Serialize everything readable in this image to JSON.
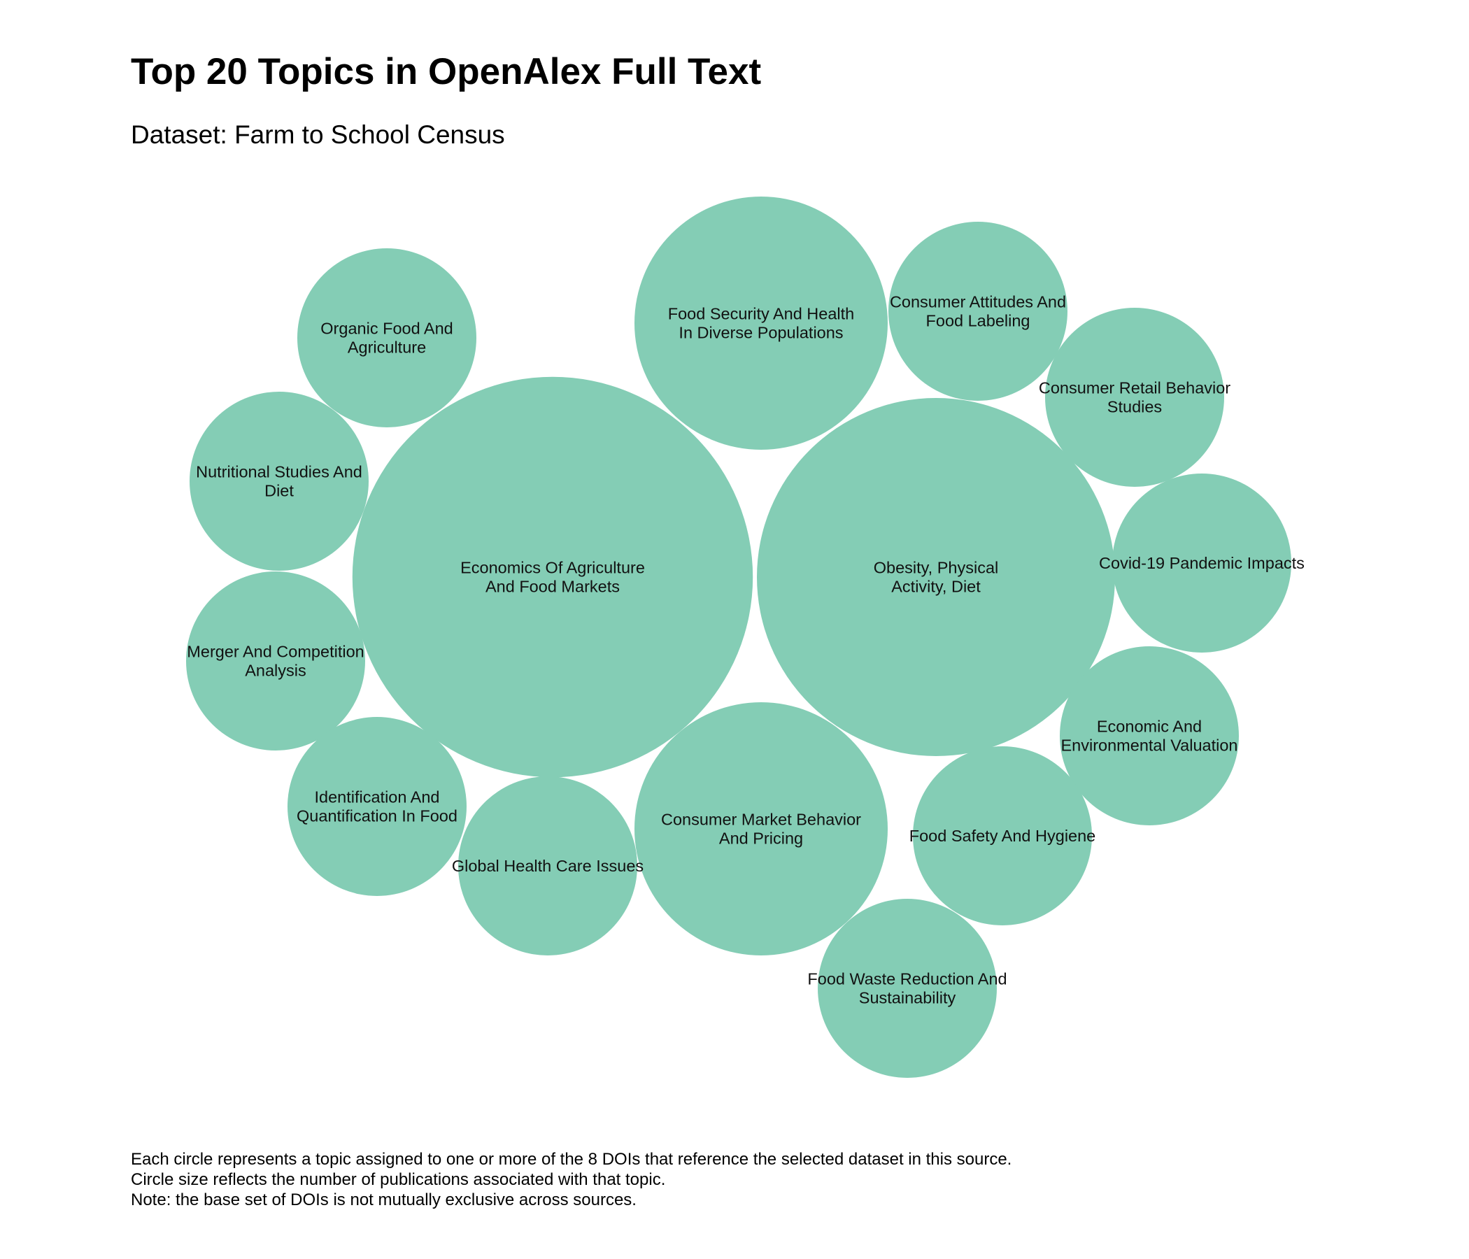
{
  "chart_data": {
    "type": "bubble",
    "title": "Top 20 Topics in OpenAlex Full Text",
    "subtitle": "Dataset: Farm to School Census",
    "color": "#84cdb5",
    "topics": [
      {
        "label": [
          "Economics Of Agriculture",
          "And Food Markets"
        ],
        "value": 5
      },
      {
        "label": [
          "Obesity, Physical",
          "Activity, Diet"
        ],
        "value": 4
      },
      {
        "label": [
          "Food Security And Health",
          "In Diverse Populations"
        ],
        "value": 2
      },
      {
        "label": [
          "Consumer Market Behavior",
          "And Pricing"
        ],
        "value": 2
      },
      {
        "label": [
          "Consumer Attitudes And",
          "Food Labeling"
        ],
        "value": 1
      },
      {
        "label": [
          "Consumer Retail Behavior",
          "Studies"
        ],
        "value": 1
      },
      {
        "label": [
          "Organic Food And",
          "Agriculture"
        ],
        "value": 1
      },
      {
        "label": [
          "Nutritional Studies And",
          "Diet"
        ],
        "value": 1
      },
      {
        "label": [
          "Covid-19 Pandemic Impacts"
        ],
        "value": 1
      },
      {
        "label": [
          "Merger And Competition",
          "Analysis"
        ],
        "value": 1
      },
      {
        "label": [
          "Economic And",
          "Environmental Valuation"
        ],
        "value": 1
      },
      {
        "label": [
          "Identification And",
          "Quantification In Food"
        ],
        "value": 1
      },
      {
        "label": [
          "Global Health Care Issues"
        ],
        "value": 1
      },
      {
        "label": [
          "Food Safety And Hygiene"
        ],
        "value": 1
      },
      {
        "label": [
          "Food Waste Reduction And",
          "Sustainability"
        ],
        "value": 1
      }
    ]
  },
  "caption": [
    "Each circle represents a topic assigned to one or more of the 8 DOIs that reference the selected dataset in this source.",
    "Circle size reflects the number of publications associated with that topic.",
    "Note: the base set of DOIs is not mutually exclusive across sources."
  ]
}
